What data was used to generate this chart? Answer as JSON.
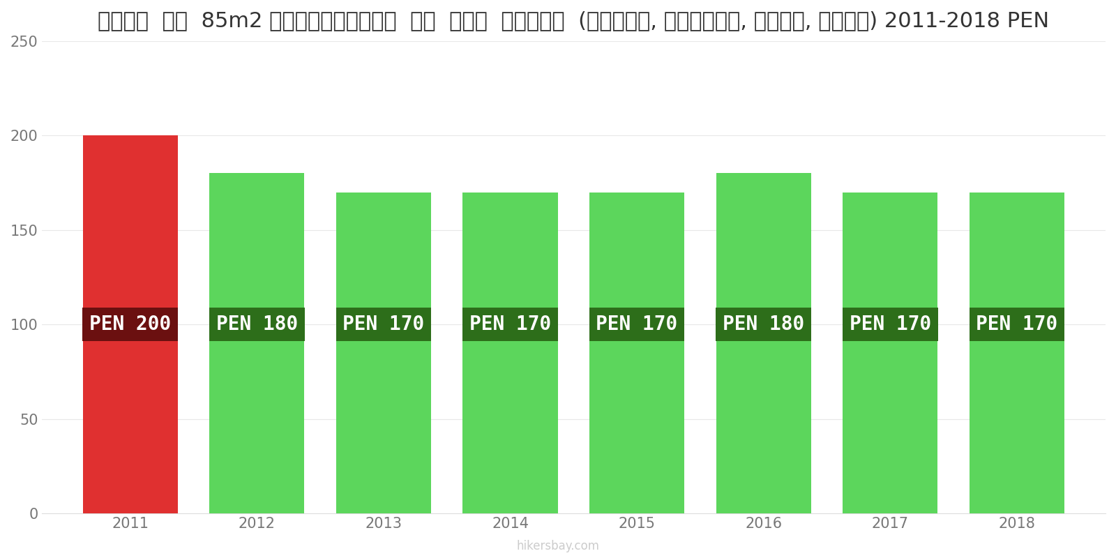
{
  "years": [
    2011,
    2012,
    2013,
    2014,
    2015,
    2016,
    2017,
    2018
  ],
  "values": [
    200,
    180,
    170,
    170,
    170,
    180,
    170,
    170
  ],
  "bar_colors": [
    "#e03030",
    "#5cd65c",
    "#5cd65c",
    "#5cd65c",
    "#5cd65c",
    "#5cd65c",
    "#5cd65c",
    "#5cd65c"
  ],
  "label_bg_colors": [
    "#6b1010",
    "#2d6e1a",
    "#2d6e1a",
    "#2d6e1a",
    "#2d6e1a",
    "#2d6e1a",
    "#2d6e1a",
    "#2d6e1a"
  ],
  "labels": [
    "PEN 200",
    "PEN 180",
    "PEN 170",
    "PEN 170",
    "PEN 170",
    "PEN 180",
    "PEN 170",
    "PEN 170"
  ],
  "title": "पेरू  एक  85m2 अपार्टमेंट  के  लिए  शुल्क  (बिजली, हीटिंग, पानी, कचरा) 2011-2018 PEN",
  "ylim": [
    0,
    250
  ],
  "yticks": [
    0,
    50,
    100,
    150,
    200,
    250
  ],
  "watermark": "hikersbay.com",
  "label_fontsize": 20,
  "title_fontsize": 22,
  "tick_fontsize": 15,
  "bar_width": 0.75
}
